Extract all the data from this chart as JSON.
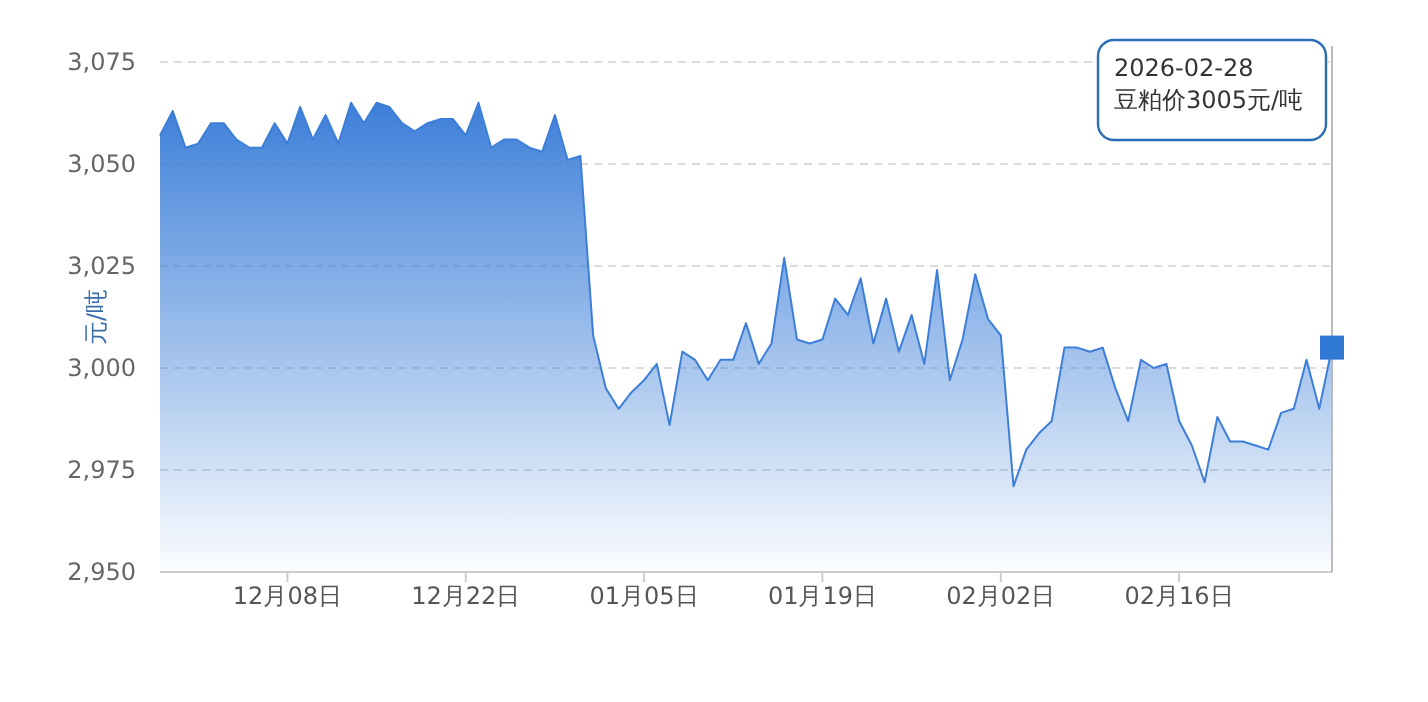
{
  "chart_data": {
    "type": "area",
    "ylabel": "元/吨",
    "categories": [
      null,
      null,
      null,
      null,
      null,
      null,
      null,
      null,
      null,
      null,
      "12月08日",
      null,
      null,
      null,
      null,
      null,
      null,
      null,
      null,
      null,
      null,
      null,
      null,
      null,
      "12月22日",
      null,
      null,
      null,
      null,
      null,
      null,
      null,
      null,
      null,
      null,
      null,
      null,
      null,
      "01月05日",
      null,
      null,
      null,
      null,
      null,
      null,
      null,
      null,
      null,
      null,
      null,
      null,
      null,
      "01月19日",
      null,
      null,
      null,
      null,
      null,
      null,
      null,
      null,
      null,
      null,
      null,
      null,
      null,
      "02月02日",
      null,
      null,
      null,
      null,
      null,
      null,
      null,
      null,
      null,
      null,
      null,
      null,
      null,
      "02月16日",
      null,
      null,
      null,
      null,
      null,
      null,
      null,
      null,
      null,
      null,
      null,
      null
    ],
    "values": [
      3057,
      3063,
      3054,
      3055,
      3060,
      3060,
      3056,
      3054,
      3054,
      3060,
      3055,
      3064,
      3056,
      3062,
      3055,
      3065,
      3060,
      3065,
      3064,
      3060,
      3058,
      3060,
      3061,
      3061,
      3057,
      3065,
      3054,
      3056,
      3056,
      3054,
      3053,
      3062,
      3051,
      3052,
      3008,
      2995,
      2990,
      2994,
      2997,
      3001,
      2986,
      3004,
      3002,
      2997,
      3002,
      3002,
      3011,
      3001,
      3006,
      3027,
      3007,
      3006,
      3007,
      3017,
      3013,
      3022,
      3006,
      3017,
      3004,
      3013,
      3001,
      3024,
      2997,
      3007,
      3023,
      3012,
      3008,
      2971,
      2980,
      2984,
      2987,
      3005,
      3005,
      3004,
      3005,
      2995,
      2987,
      3002,
      3000,
      3001,
      2987,
      2981,
      2972,
      2988,
      2982,
      2982,
      2981,
      2980,
      2989,
      2990,
      3002,
      2990,
      3005
    ],
    "color": "#3d7fd8",
    "ylim": [
      2950,
      3075
    ],
    "yticks": [
      {
        "value": 2950,
        "label": "2,950"
      },
      {
        "value": 2975,
        "label": "2,975"
      },
      {
        "value": 3000,
        "label": "3,000"
      },
      {
        "value": 3025,
        "label": "3,025"
      },
      {
        "value": 3050,
        "label": "3,050"
      },
      {
        "value": 3075,
        "label": "3,075"
      }
    ],
    "grid": "y",
    "annotations": [
      "2026-02-28\n豆粕价3005元/吨"
    ]
  }
}
